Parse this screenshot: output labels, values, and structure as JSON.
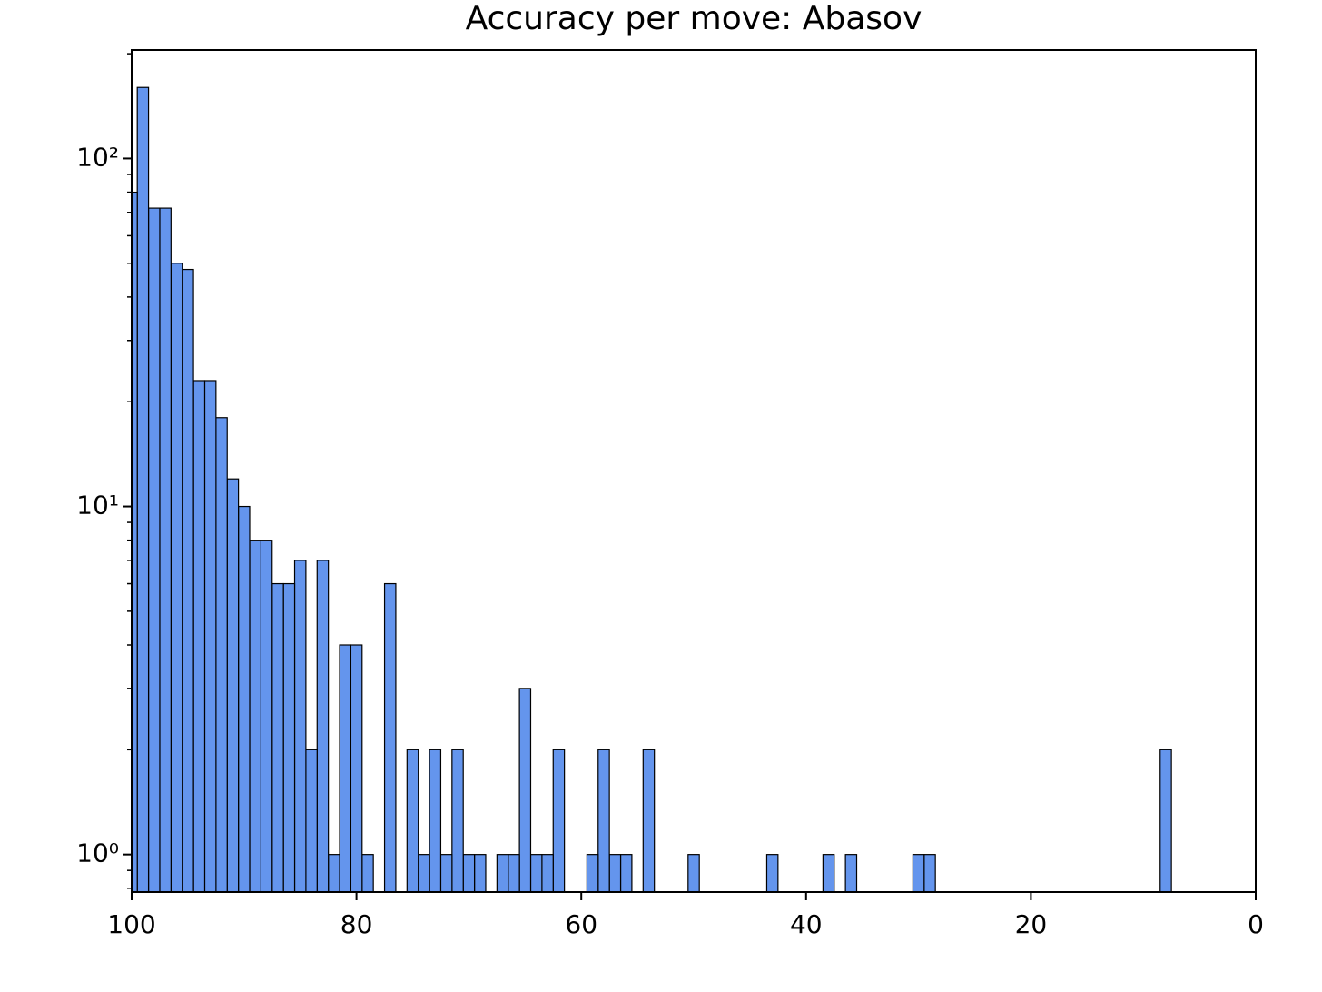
{
  "chart_data": {
    "type": "histogram",
    "title": "Accuracy per move: Abasov",
    "bins": [
      7.5,
      8.5,
      9.5,
      10.5,
      11.5,
      12.5,
      13.5,
      14.5,
      15.5,
      16.5,
      17.5,
      18.5,
      19.5,
      20.5,
      21.5,
      22.5,
      23.5,
      24.5,
      25.5,
      26.5,
      27.5,
      28.5,
      29.5,
      30.5,
      31.5,
      32.5,
      33.5,
      34.5,
      35.5,
      36.5,
      37.5,
      38.5,
      39.5,
      40.5,
      41.5,
      42.5,
      43.5,
      44.5,
      45.5,
      46.5,
      47.5,
      48.5,
      49.5,
      50.5,
      51.5,
      52.5,
      53.5,
      54.5,
      55.5,
      56.5,
      57.5,
      58.5,
      59.5,
      60.5,
      61.5,
      62.5,
      63.5,
      64.5,
      65.5,
      66.5,
      67.5,
      68.5,
      69.5,
      70.5,
      71.5,
      72.5,
      73.5,
      74.5,
      75.5,
      76.5,
      77.5,
      78.5,
      79.5,
      80.5,
      81.5,
      82.5,
      83.5,
      84.5,
      85.5,
      86.5,
      87.5,
      88.5,
      89.5,
      90.5,
      91.5,
      92.5,
      93.5,
      94.5,
      95.5,
      96.5,
      97.5,
      98.5,
      99.5,
      100.5
    ],
    "values": [
      2,
      0,
      0,
      0,
      0,
      0,
      0,
      0,
      0,
      0,
      0,
      0,
      0,
      0,
      0,
      0,
      0,
      0,
      0,
      0,
      0,
      1,
      1,
      0,
      0,
      0,
      0,
      0,
      1,
      0,
      1,
      0,
      0,
      0,
      0,
      1,
      0,
      0,
      0,
      0,
      0,
      0,
      1,
      0,
      0,
      0,
      2,
      0,
      1,
      1,
      2,
      1,
      0,
      0,
      2,
      1,
      1,
      3,
      1,
      1,
      0,
      1,
      1,
      2,
      1,
      2,
      1,
      2,
      0,
      6,
      0,
      1,
      4,
      4,
      1,
      7,
      2,
      7,
      6,
      6,
      8,
      8,
      10,
      12,
      18,
      23,
      23,
      48,
      50,
      72,
      72,
      160,
      80
    ],
    "color": "#6495ed",
    "edgecolor": "#000000",
    "xlim": [
      100,
      0
    ],
    "xticks": [
      100,
      80,
      60,
      40,
      20,
      0
    ],
    "ylim": [
      0.78,
      205
    ],
    "log_y": true,
    "yticks": [
      {
        "value": 1,
        "label": "10⁰"
      },
      {
        "value": 10,
        "label": "10¹"
      },
      {
        "value": 100,
        "label": "10²"
      }
    ],
    "yminorticks": [
      0.8,
      0.9,
      2,
      3,
      4,
      5,
      6,
      7,
      8,
      9,
      20,
      30,
      40,
      50,
      60,
      70,
      80,
      90,
      200
    ],
    "grid": false
  }
}
